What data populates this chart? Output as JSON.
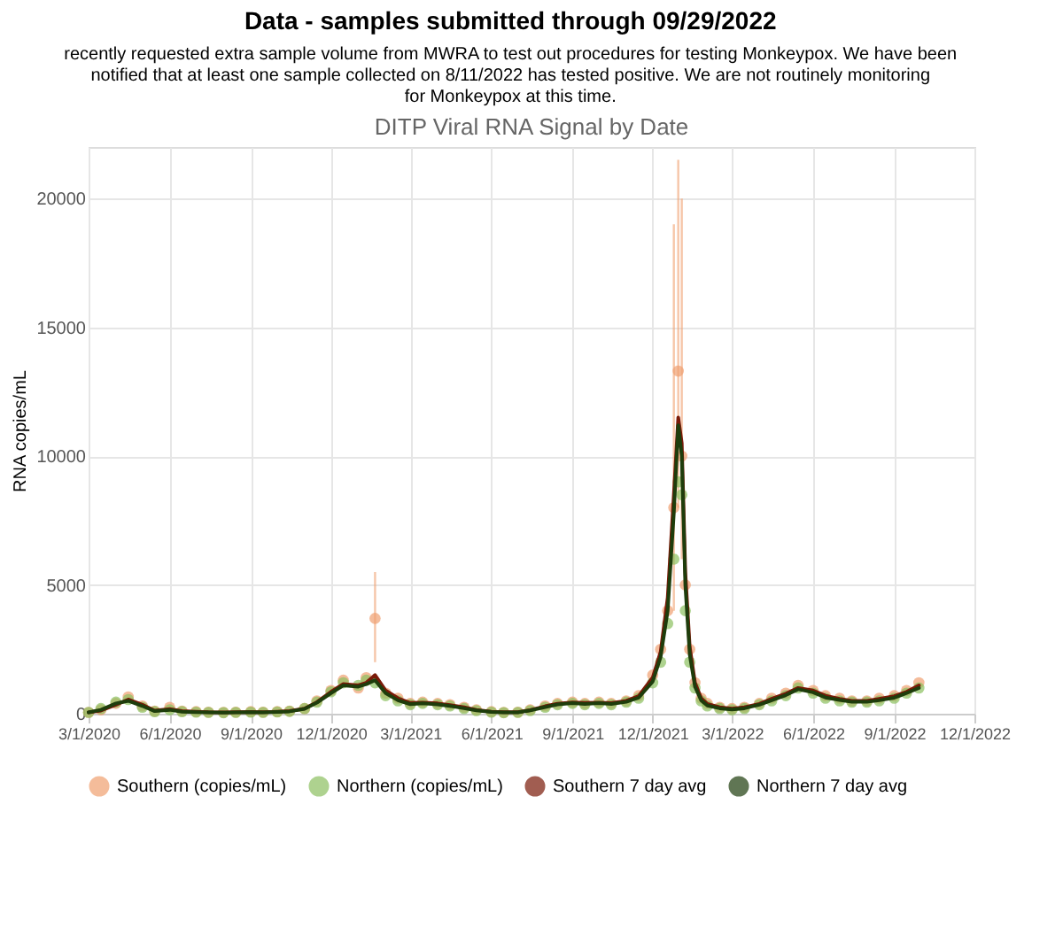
{
  "chart_data": {
    "type": "scatter",
    "title": "Data - samples submitted through 09/29/2022",
    "annotations": [
      "recently requested extra sample volume from MWRA to test out procedures for testing Monkeypox. We have been notified that at least one sample collected on 8/11/2022 has tested positive. We are not routinely monitoring for Monkeypox at this time."
    ],
    "subtitle": "DITP Viral RNA Signal by Date",
    "ylabel": "RNA copies/mL",
    "x": [
      "2020-03-01",
      "2020-03-15",
      "2020-04-01",
      "2020-04-15",
      "2020-05-01",
      "2020-05-15",
      "2020-06-01",
      "2020-06-15",
      "2020-07-01",
      "2020-07-15",
      "2020-08-01",
      "2020-08-15",
      "2020-09-01",
      "2020-09-15",
      "2020-10-01",
      "2020-10-15",
      "2020-11-01",
      "2020-11-15",
      "2020-12-01",
      "2020-12-15",
      "2021-01-01",
      "2021-01-10",
      "2021-01-20",
      "2021-02-01",
      "2021-02-15",
      "2021-03-01",
      "2021-03-15",
      "2021-04-01",
      "2021-04-15",
      "2021-05-01",
      "2021-05-15",
      "2021-06-01",
      "2021-06-15",
      "2021-07-01",
      "2021-07-15",
      "2021-08-01",
      "2021-08-15",
      "2021-09-01",
      "2021-09-15",
      "2021-10-01",
      "2021-10-15",
      "2021-11-01",
      "2021-11-15",
      "2021-12-01",
      "2021-12-10",
      "2021-12-18",
      "2021-12-25",
      "2021-12-30",
      "2022-01-03",
      "2022-01-07",
      "2022-01-12",
      "2022-01-18",
      "2022-01-25",
      "2022-02-01",
      "2022-02-15",
      "2022-03-01",
      "2022-03-15",
      "2022-04-01",
      "2022-04-15",
      "2022-05-01",
      "2022-05-15",
      "2022-06-01",
      "2022-06-15",
      "2022-07-01",
      "2022-07-15",
      "2022-08-01",
      "2022-08-15",
      "2022-09-01",
      "2022-09-15",
      "2022-09-29"
    ],
    "series": [
      {
        "name": "Southern (copies/mL)",
        "color": "#f0a070",
        "values": [
          50,
          150,
          400,
          650,
          300,
          100,
          250,
          100,
          80,
          60,
          50,
          60,
          80,
          60,
          80,
          100,
          200,
          500,
          900,
          1300,
          1000,
          1400,
          3700,
          800,
          600,
          400,
          450,
          400,
          350,
          250,
          150,
          80,
          50,
          60,
          150,
          300,
          400,
          450,
          400,
          450,
          400,
          500,
          700,
          1500,
          2500,
          4000,
          8000,
          13300,
          10000,
          5000,
          2500,
          1200,
          600,
          400,
          250,
          200,
          250,
          400,
          600,
          800,
          1100,
          900,
          700,
          600,
          500,
          500,
          600,
          700,
          900,
          1200
        ],
        "errors": [
          null,
          null,
          null,
          null,
          null,
          null,
          null,
          null,
          null,
          null,
          null,
          null,
          null,
          null,
          null,
          null,
          null,
          null,
          null,
          null,
          null,
          null,
          [
            2000,
            5500
          ],
          null,
          null,
          null,
          null,
          null,
          null,
          null,
          null,
          null,
          null,
          null,
          null,
          null,
          null,
          null,
          null,
          null,
          null,
          null,
          null,
          null,
          null,
          null,
          [
            4000,
            19000
          ],
          [
            8000,
            21500
          ],
          [
            6000,
            20000
          ],
          null,
          null,
          null,
          null,
          null,
          null,
          null,
          null,
          null,
          null,
          null,
          null,
          null,
          null,
          null,
          null,
          null,
          null,
          null,
          null,
          null
        ]
      },
      {
        "name": "Northern (copies/mL)",
        "color": "#8cc060",
        "values": [
          50,
          200,
          450,
          550,
          250,
          80,
          150,
          80,
          60,
          50,
          40,
          50,
          60,
          50,
          70,
          90,
          200,
          450,
          850,
          1200,
          1100,
          1300,
          1200,
          700,
          500,
          350,
          400,
          350,
          300,
          200,
          120,
          60,
          40,
          50,
          120,
          250,
          350,
          400,
          350,
          400,
          350,
          450,
          600,
          1200,
          2000,
          3500,
          6000,
          9000,
          8500,
          4000,
          2000,
          1000,
          500,
          300,
          200,
          150,
          200,
          350,
          500,
          700,
          1000,
          800,
          600,
          500,
          450,
          450,
          500,
          600,
          800,
          1000
        ]
      },
      {
        "name": "Southern 7 day avg",
        "color": "#7a1a08",
        "type": "line",
        "marker": "none",
        "values": [
          50,
          120,
          350,
          550,
          350,
          120,
          180,
          100,
          80,
          60,
          50,
          60,
          70,
          60,
          80,
          100,
          200,
          450,
          850,
          1150,
          1100,
          1200,
          1500,
          900,
          600,
          420,
          430,
          400,
          340,
          250,
          150,
          80,
          60,
          60,
          140,
          290,
          390,
          440,
          420,
          430,
          410,
          500,
          680,
          1400,
          2400,
          4500,
          8500,
          11500,
          10500,
          5500,
          2600,
          1200,
          600,
          380,
          250,
          200,
          250,
          380,
          580,
          780,
          1000,
          900,
          700,
          580,
          500,
          500,
          580,
          680,
          850,
          1100
        ]
      },
      {
        "name": "Northern 7 day avg",
        "color": "#1e3d0c",
        "type": "line",
        "marker": "none",
        "values": [
          50,
          150,
          400,
          500,
          300,
          100,
          150,
          80,
          60,
          50,
          40,
          50,
          60,
          50,
          70,
          90,
          190,
          430,
          800,
          1100,
          1050,
          1150,
          1300,
          800,
          520,
          370,
          400,
          360,
          300,
          210,
          130,
          70,
          50,
          50,
          130,
          260,
          360,
          410,
          380,
          410,
          380,
          460,
          620,
          1250,
          2200,
          4000,
          7800,
          11200,
          10000,
          5000,
          2300,
          1050,
          520,
          320,
          210,
          160,
          210,
          350,
          520,
          720,
          950,
          830,
          630,
          530,
          460,
          460,
          520,
          620,
          800,
          1000
        ]
      }
    ],
    "xlim": [
      "2020-03-01",
      "2022-12-01"
    ],
    "xticks": [
      {
        "value": "2020-03-01",
        "label": "3/1/2020"
      },
      {
        "value": "2020-06-01",
        "label": "6/1/2020"
      },
      {
        "value": "2020-09-01",
        "label": "9/1/2020"
      },
      {
        "value": "2020-12-01",
        "label": "12/1/2020"
      },
      {
        "value": "2021-03-01",
        "label": "3/1/2021"
      },
      {
        "value": "2021-06-01",
        "label": "6/1/2021"
      },
      {
        "value": "2021-09-01",
        "label": "9/1/2021"
      },
      {
        "value": "2021-12-01",
        "label": "12/1/2021"
      },
      {
        "value": "2022-03-01",
        "label": "3/1/2022"
      },
      {
        "value": "2022-06-01",
        "label": "6/1/2022"
      },
      {
        "value": "2022-09-01",
        "label": "9/1/2022"
      },
      {
        "value": "2022-12-01",
        "label": "12/1/2022"
      }
    ],
    "ylim": [
      0,
      22000
    ],
    "yticks": [
      0,
      5000,
      10000,
      15000,
      20000
    ],
    "grid": true,
    "legend": "bottom",
    "marker": "circle",
    "line_style": "solid"
  }
}
